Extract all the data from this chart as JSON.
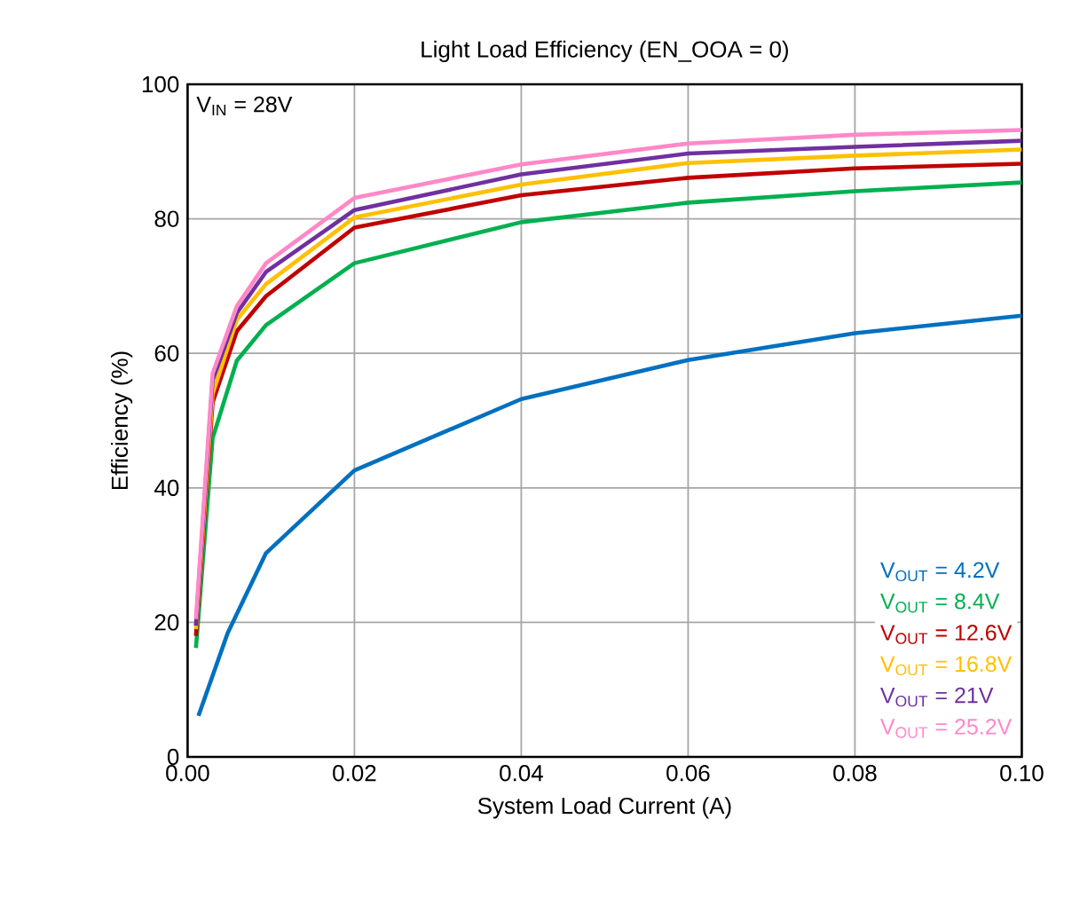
{
  "chart_data": {
    "type": "line",
    "title": "Light Load Efficiency (EN_OOA = 0)",
    "xlabel": "System Load Current (A)",
    "ylabel": "Efficiency (%)",
    "annotations": [
      "V$_{IN}$ = 28V"
    ],
    "xlim": [
      0,
      0.1
    ],
    "ylim": [
      0,
      100
    ],
    "xticks": [
      {
        "value": 0,
        "label": "0.00"
      },
      {
        "value": 0.02,
        "label": "0.02"
      },
      {
        "value": 0.04,
        "label": "0.04"
      },
      {
        "value": 0.06,
        "label": "0.06"
      },
      {
        "value": 0.08,
        "label": "0.08"
      },
      {
        "value": 0.1,
        "label": "0.10"
      }
    ],
    "yticks": [
      0,
      20,
      40,
      60,
      80,
      100
    ],
    "grid": true,
    "legend": "bottom right",
    "marker": "none",
    "line_style": "solid",
    "series": [
      {
        "name": "V$_{OUT}$ = 4.2V",
        "color": "#0070c0",
        "x": [
          0.0013,
          0.0048,
          0.0094,
          0.02,
          0.04,
          0.06,
          0.08,
          0.1
        ],
        "values": [
          6.1,
          18.4,
          30.3,
          42.6,
          53.2,
          59.0,
          63.0,
          65.6
        ]
      },
      {
        "name": "V$_{OUT}$ = 8.4V",
        "color": "#00b050",
        "x": [
          0.001,
          0.003,
          0.0059,
          0.0094,
          0.02,
          0.04,
          0.06,
          0.08,
          0.1
        ],
        "values": [
          16.2,
          47.4,
          58.9,
          64.2,
          73.4,
          79.5,
          82.4,
          84.1,
          85.4
        ]
      },
      {
        "name": "V$_{OUT}$ = 12.6V",
        "color": "#c00000",
        "x": [
          0.001,
          0.003,
          0.0059,
          0.0094,
          0.02,
          0.04,
          0.06,
          0.08,
          0.1
        ],
        "values": [
          18,
          52.7,
          63.3,
          68.5,
          78.7,
          83.5,
          86.1,
          87.5,
          88.2
        ]
      },
      {
        "name": "V$_{OUT}$ = 16.8V",
        "color": "#ffc000",
        "x": [
          0.001,
          0.003,
          0.0059,
          0.0094,
          0.02,
          0.04,
          0.06,
          0.08,
          0.1
        ],
        "values": [
          19,
          54,
          65,
          70.3,
          80.2,
          85.1,
          88.3,
          89.4,
          90.3
        ]
      },
      {
        "name": "V$_{OUT}$ = 21V",
        "color": "#7030a0",
        "x": [
          0.001,
          0.003,
          0.0059,
          0.0094,
          0.02,
          0.04,
          0.06,
          0.08,
          0.1
        ],
        "values": [
          19.5,
          56,
          66,
          72.1,
          81.3,
          86.6,
          89.7,
          90.7,
          91.6
        ]
      },
      {
        "name": "V$_{OUT}$ = 25.2V",
        "color": "#ff88c8",
        "x": [
          0.001,
          0.003,
          0.0059,
          0.0094,
          0.02,
          0.04,
          0.06,
          0.08,
          0.1
        ],
        "values": [
          20.5,
          57,
          67,
          73.4,
          83.1,
          88.1,
          91.2,
          92.5,
          93.2
        ]
      }
    ]
  }
}
